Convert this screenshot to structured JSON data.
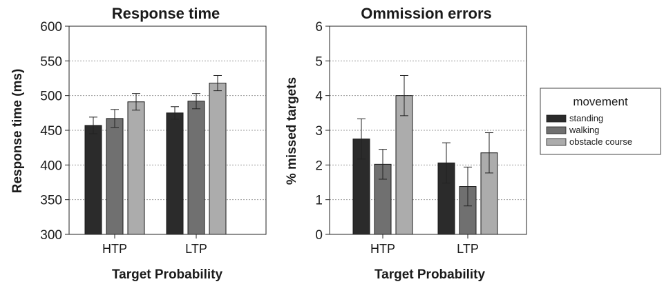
{
  "chart_data": [
    {
      "type": "bar",
      "title": "Response time",
      "xlabel": "Target Probability",
      "ylabel": "Response time (ms)",
      "ylim": [
        300,
        600
      ],
      "yticks": [
        300,
        350,
        400,
        450,
        500,
        550,
        600
      ],
      "grid": "horizontal dotted",
      "categories": [
        "HTP",
        "LTP"
      ],
      "series": [
        {
          "name": "standing",
          "values": [
            457,
            475
          ],
          "errors": [
            12,
            9
          ],
          "color": "#2b2b2b"
        },
        {
          "name": "walking",
          "values": [
            467,
            492
          ],
          "errors": [
            13,
            11
          ],
          "color": "#707070"
        },
        {
          "name": "obstacle course",
          "values": [
            491,
            518
          ],
          "errors": [
            12,
            11
          ],
          "color": "#acacac"
        }
      ]
    },
    {
      "type": "bar",
      "title": "Ommission errors",
      "xlabel": "Target Probability",
      "ylabel": "% missed targets",
      "ylim": [
        0,
        6
      ],
      "yticks": [
        0,
        1,
        2,
        3,
        4,
        5,
        6
      ],
      "grid": "horizontal dotted",
      "categories": [
        "HTP",
        "LTP"
      ],
      "series": [
        {
          "name": "standing",
          "values": [
            2.75,
            2.06
          ],
          "errors": [
            0.58,
            0.58
          ],
          "color": "#2b2b2b"
        },
        {
          "name": "walking",
          "values": [
            2.02,
            1.38
          ],
          "errors": [
            0.43,
            0.56
          ],
          "color": "#707070"
        },
        {
          "name": "obstacle course",
          "values": [
            4.0,
            2.35
          ],
          "errors": [
            0.58,
            0.58
          ],
          "color": "#acacac"
        }
      ]
    }
  ],
  "legend": {
    "title": "movement",
    "placement": "right",
    "items": [
      {
        "label": "standing",
        "color": "#2b2b2b"
      },
      {
        "label": "walking",
        "color": "#707070"
      },
      {
        "label": "obstacle course",
        "color": "#acacac"
      }
    ]
  }
}
